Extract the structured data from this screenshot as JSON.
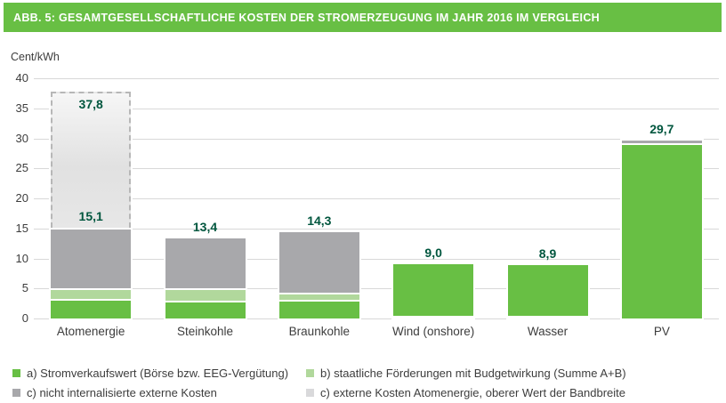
{
  "title": "ABB. 5: GESAMTGESELLSCHAFTLICHE KOSTEN DER STROMERZEUGUNG IM JAHR 2016 IM VERGLEICH",
  "colors": {
    "brand_green": "#68bf44",
    "light_green": "#b1d89c",
    "dark_gray": "#a8a8ab",
    "light_gray": "#d9d9db",
    "grid": "#d8d8d8",
    "value_label": "#00563e",
    "text": "#3d3d3d",
    "title_text": "#ffffff"
  },
  "chart_data": {
    "type": "bar",
    "stacked": true,
    "title": "ABB. 5: GESAMTGESELLSCHAFTLICHE KOSTEN DER STROMERZEUGUNG IM JAHR 2016 IM VERGLEICH",
    "ylabel": "Cent/kWh",
    "xlabel": "",
    "ylim": [
      0,
      40
    ],
    "yticks": [
      40,
      35,
      30,
      25,
      20,
      15,
      10,
      5,
      0
    ],
    "grid": true,
    "legend_position": "bottom",
    "categories": [
      "Atomenergie",
      "Steinkohle",
      "Braunkohle",
      "Wind (onshore)",
      "Wasser",
      "PV"
    ],
    "series_legend": [
      {
        "key": "a",
        "label": "a) Stromverkaufswert (Börse bzw. EEG-Vergütung)",
        "color": "#68bf44"
      },
      {
        "key": "b",
        "label": "b) staatliche Förderungen mit Budgetwirkung (Summe A+B)",
        "color": "#b1d89c"
      },
      {
        "key": "c",
        "label": "c) nicht internalisierte externe Kosten",
        "color": "#a8a8ab"
      },
      {
        "key": "c2",
        "label": "c) externe Kosten Atomenergie, oberer Wert der Bandbreite",
        "color": "#d9d9db"
      }
    ],
    "bars": [
      {
        "category": "Atomenergie",
        "segments": [
          {
            "series": "a",
            "from": 0,
            "to": 3.2
          },
          {
            "series": "b",
            "from": 3.2,
            "to": 5.1
          },
          {
            "series": "c",
            "from": 5.1,
            "to": 15.1
          },
          {
            "series": "c2",
            "from": 15.1,
            "to": 37.8,
            "dashed": true
          }
        ],
        "labels": [
          {
            "text": "15,1",
            "value": 15.1,
            "placement": "above"
          },
          {
            "text": "37,8",
            "value": 37.8,
            "placement": "below"
          }
        ]
      },
      {
        "category": "Steinkohle",
        "segments": [
          {
            "series": "a",
            "from": 0,
            "to": 3.0
          },
          {
            "series": "b",
            "from": 3.0,
            "to": 5.1
          },
          {
            "series": "c",
            "from": 5.1,
            "to": 13.4
          }
        ],
        "labels": [
          {
            "text": "13,4",
            "value": 13.4,
            "placement": "above"
          }
        ]
      },
      {
        "category": "Braunkohle",
        "segments": [
          {
            "series": "a",
            "from": 0,
            "to": 3.1
          },
          {
            "series": "b",
            "from": 3.1,
            "to": 4.3
          },
          {
            "series": "c",
            "from": 4.3,
            "to": 14.3
          }
        ],
        "labels": [
          {
            "text": "14,3",
            "value": 14.3,
            "placement": "above"
          }
        ]
      },
      {
        "category": "Wind (onshore)",
        "segments": [
          {
            "series": "c",
            "from": 0,
            "to": 0.2
          },
          {
            "series": "b",
            "from": 0.25,
            "to": 0.5
          },
          {
            "series": "a",
            "from": 0.5,
            "to": 9.0
          }
        ],
        "labels": [
          {
            "text": "9,0",
            "value": 9.0,
            "placement": "above"
          }
        ]
      },
      {
        "category": "Wasser",
        "segments": [
          {
            "series": "c",
            "from": 0,
            "to": 0.2
          },
          {
            "series": "b",
            "from": 0.25,
            "to": 0.5
          },
          {
            "series": "a",
            "from": 0.5,
            "to": 8.9
          }
        ],
        "labels": [
          {
            "text": "8,9",
            "value": 8.9,
            "placement": "above"
          }
        ]
      },
      {
        "category": "PV",
        "segments": [
          {
            "series": "a",
            "from": 0,
            "to": 29.2
          },
          {
            "series": "c",
            "from": 29.2,
            "to": 29.7
          }
        ],
        "labels": [
          {
            "text": "29,7",
            "value": 29.7,
            "placement": "above"
          }
        ]
      }
    ]
  }
}
